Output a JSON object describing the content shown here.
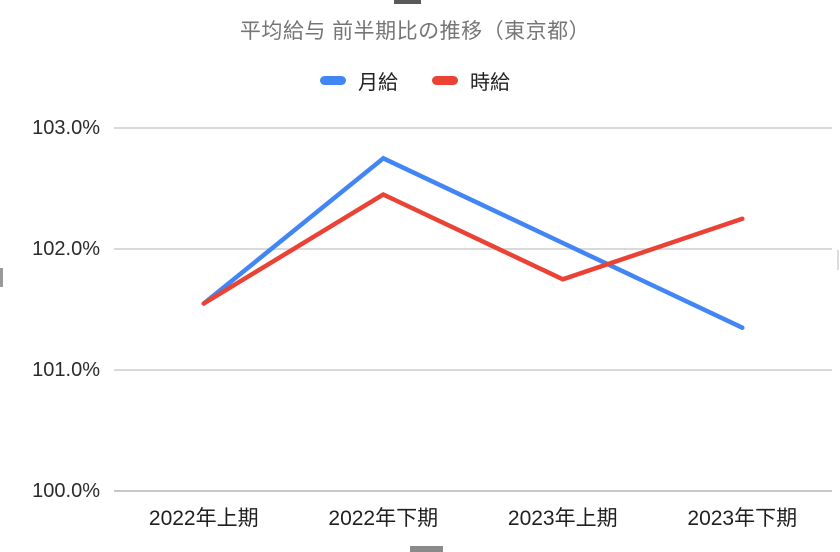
{
  "chart_data": {
    "type": "line",
    "title": "平均給与 前半期比の推移（東京都）",
    "categories": [
      "2022年上期",
      "2022年下期",
      "2023年上期",
      "2023年下期"
    ],
    "series": [
      {
        "name": "月給",
        "color": "#4285f4",
        "values": [
          101.55,
          102.75,
          102.05,
          101.35
        ]
      },
      {
        "name": "時給",
        "color": "#ea4335",
        "values": [
          101.55,
          102.45,
          101.75,
          102.25
        ]
      }
    ],
    "ylim": [
      100,
      103
    ],
    "y_ticks": [
      {
        "value": 103,
        "label": "103.0%"
      },
      {
        "value": 102,
        "label": "102.0%"
      },
      {
        "value": 101,
        "label": "101.0%"
      },
      {
        "value": 100,
        "label": "100.0%"
      }
    ],
    "grid": "horizontal-only",
    "legend_position": "top",
    "colors": {
      "title_text": "#757575",
      "axis_text": "#212121",
      "gridline": "#d9d9d9",
      "baseline": "#c7c7c7",
      "background": "#ffffff"
    }
  }
}
